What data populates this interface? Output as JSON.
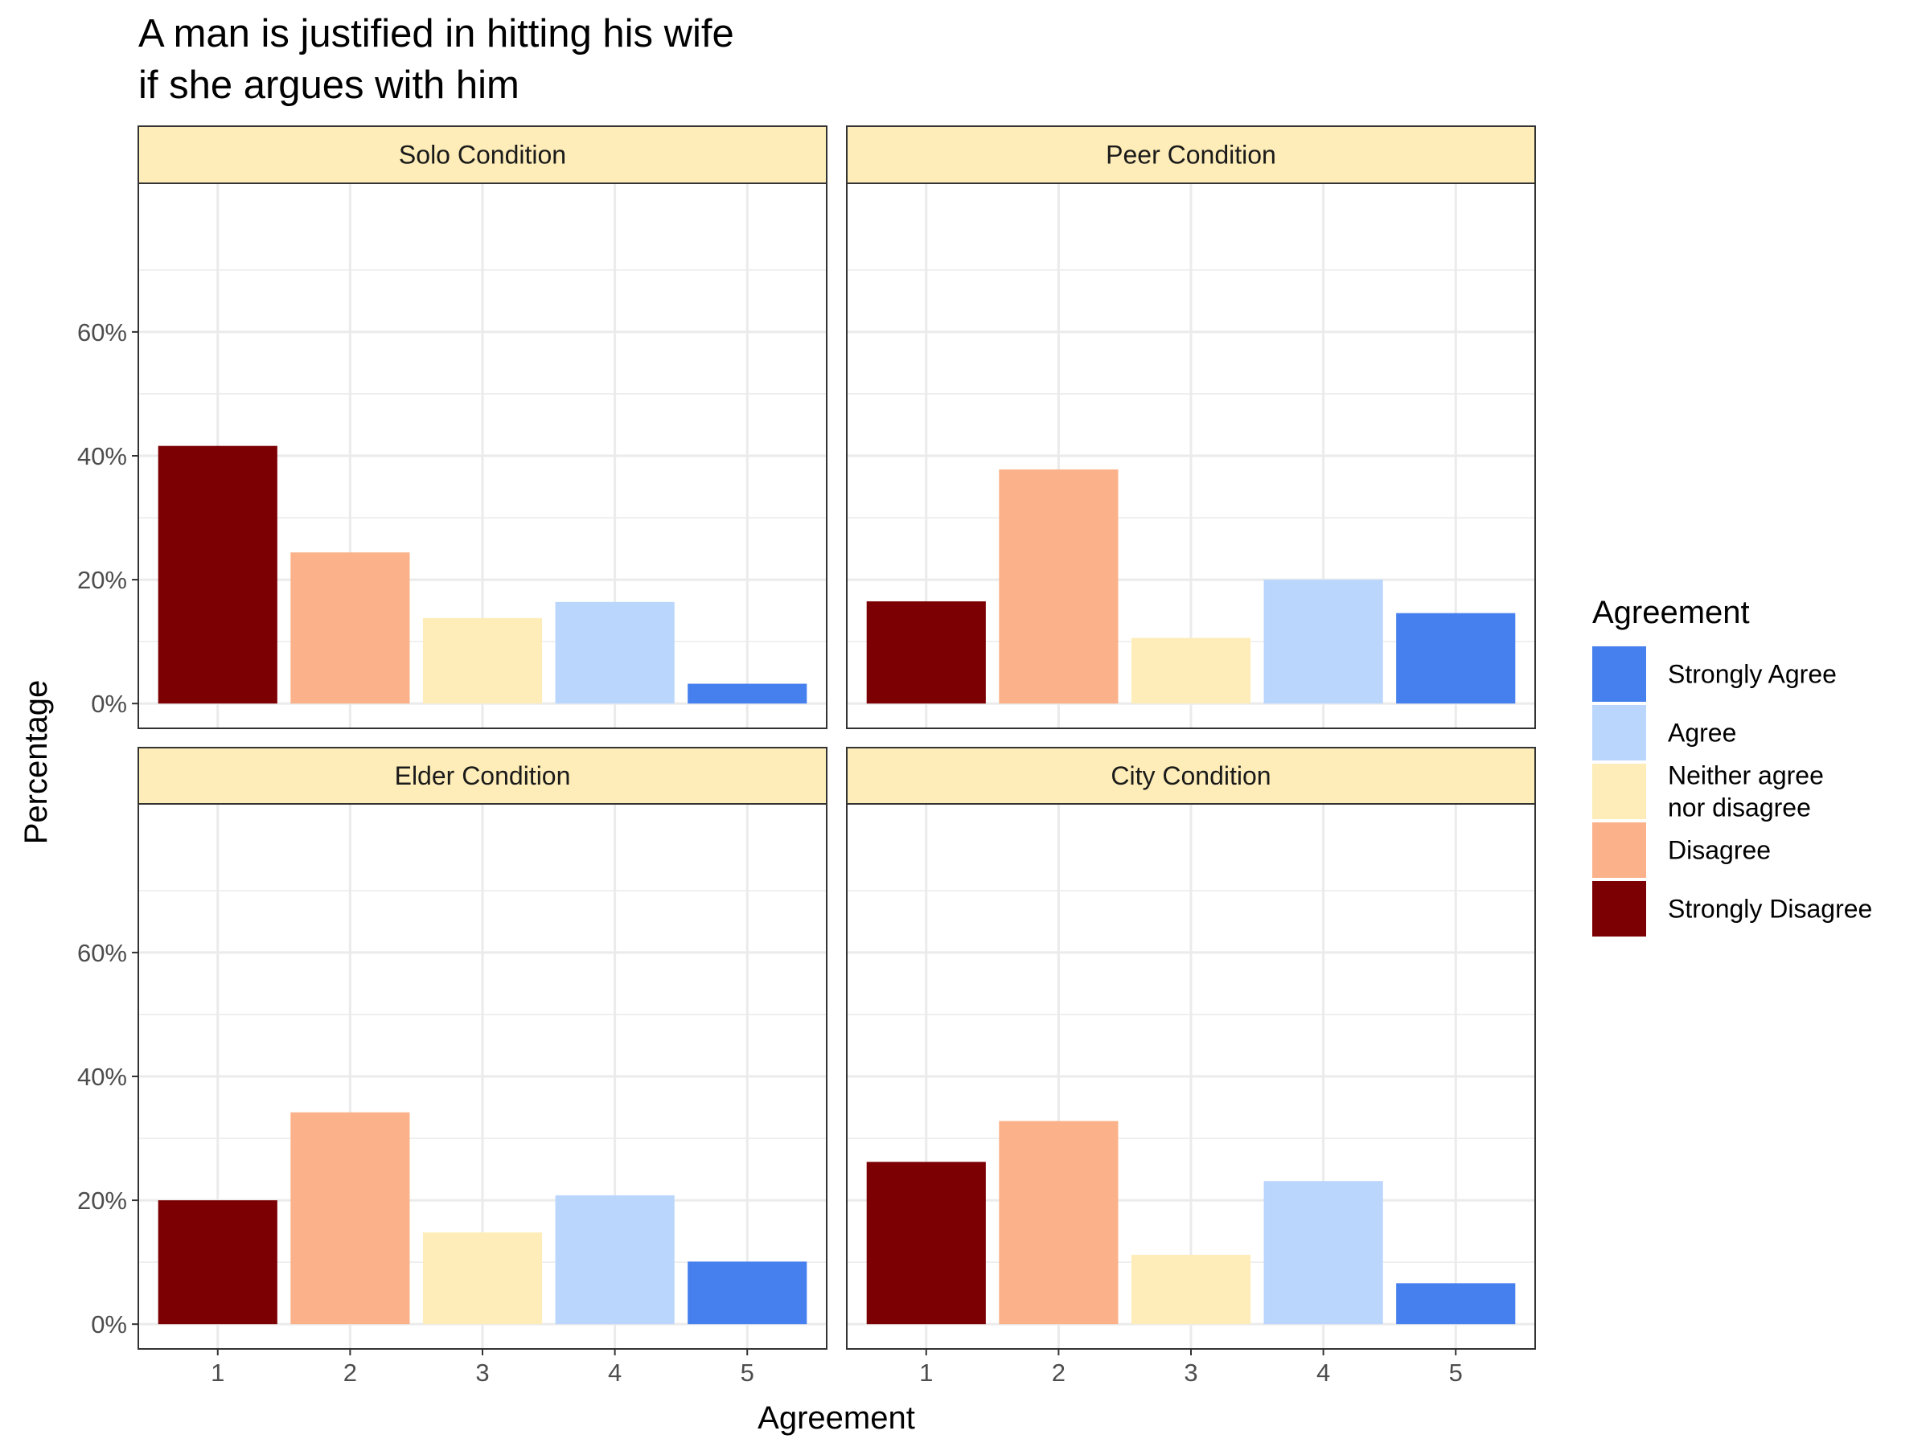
{
  "chart_data": {
    "type": "bar",
    "title_lines": [
      "A man is justified in hitting his wife",
      "if she argues with him"
    ],
    "xlabel": "Agreement",
    "ylabel": "Percentage",
    "categories": [
      "1",
      "2",
      "3",
      "4",
      "5"
    ],
    "yticks": [
      "0%",
      "20%",
      "40%",
      "60%"
    ],
    "ytick_values": [
      0,
      20,
      40,
      60
    ],
    "ylim": [
      0,
      80
    ],
    "grid": true,
    "legend": {
      "title": "Agreement",
      "position": "right",
      "entries": [
        {
          "label_lines": [
            "Strongly Agree"
          ],
          "color": "#4680ee"
        },
        {
          "label_lines": [
            "Agree"
          ],
          "color": "#bad6fd"
        },
        {
          "label_lines": [
            "Neither agree",
            "nor disagree"
          ],
          "color": "#feedb8"
        },
        {
          "label_lines": [
            "Disagree"
          ],
          "color": "#fbb28a"
        },
        {
          "label_lines": [
            "Strongly Disagree"
          ],
          "color": "#7c0003"
        }
      ]
    },
    "bar_colors": [
      "#7c0003",
      "#fbb28a",
      "#feedb8",
      "#bad6fd",
      "#4680ee"
    ],
    "strip_color": "#feedb8",
    "panels": [
      {
        "name": "Solo Condition",
        "values": [
          41.6,
          24.4,
          13.8,
          16.4,
          3.2
        ]
      },
      {
        "name": "Peer Condition",
        "values": [
          16.5,
          37.8,
          10.6,
          20.0,
          14.6
        ]
      },
      {
        "name": "Elder Condition",
        "values": [
          20.0,
          34.2,
          14.8,
          20.8,
          10.1
        ]
      },
      {
        "name": "City Condition",
        "values": [
          26.2,
          32.8,
          11.2,
          23.1,
          6.6
        ]
      }
    ]
  }
}
